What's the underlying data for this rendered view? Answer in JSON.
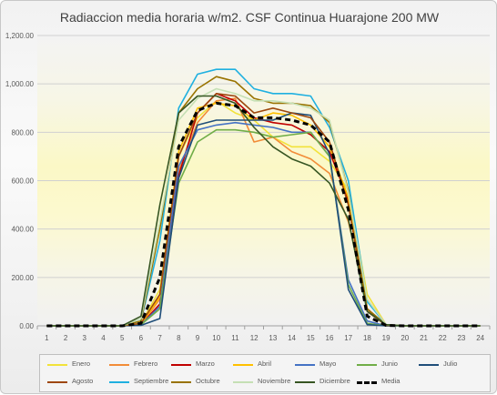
{
  "chart_data": {
    "type": "line",
    "title": "Radiaccion media horaria w/m2. CSF Continua Huarajone 200 MW",
    "xlabel": "",
    "ylabel": "",
    "x": [
      1,
      2,
      3,
      4,
      5,
      6,
      7,
      8,
      9,
      10,
      11,
      12,
      13,
      14,
      15,
      16,
      17,
      18,
      19,
      20,
      21,
      22,
      23,
      24
    ],
    "ylim": [
      0,
      1200
    ],
    "yticks": [
      "0.00",
      "200.00",
      "400.00",
      "600.00",
      "800.00",
      "1,000.00",
      "1,200.00"
    ],
    "background": "vertical gradient: light yellow band across the middle",
    "grid": "horizontal",
    "legend_position": "bottom",
    "series": [
      {
        "name": "Enero",
        "color": "#f2e23a",
        "dash": false,
        "values": [
          0,
          0,
          0,
          0,
          0,
          10,
          150,
          700,
          860,
          930,
          880,
          850,
          780,
          740,
          740,
          680,
          560,
          130,
          5,
          0,
          0,
          0,
          0,
          0
        ]
      },
      {
        "name": "Febrero",
        "color": "#f28c38",
        "dash": false,
        "values": [
          0,
          0,
          0,
          0,
          0,
          5,
          110,
          640,
          840,
          930,
          940,
          760,
          780,
          720,
          690,
          630,
          430,
          110,
          5,
          0,
          0,
          0,
          0,
          0
        ]
      },
      {
        "name": "Marzo",
        "color": "#c00000",
        "dash": false,
        "values": [
          0,
          0,
          0,
          0,
          0,
          5,
          90,
          620,
          880,
          960,
          930,
          860,
          840,
          830,
          790,
          720,
          520,
          70,
          3,
          0,
          0,
          0,
          0,
          0
        ]
      },
      {
        "name": "Abril",
        "color": "#ffc000",
        "dash": false,
        "values": [
          0,
          0,
          0,
          0,
          0,
          5,
          120,
          720,
          900,
          920,
          910,
          850,
          880,
          870,
          830,
          740,
          530,
          60,
          3,
          0,
          0,
          0,
          0,
          0
        ]
      },
      {
        "name": "Mayo",
        "color": "#4472c4",
        "dash": false,
        "values": [
          0,
          0,
          0,
          0,
          0,
          5,
          80,
          660,
          810,
          830,
          840,
          830,
          820,
          800,
          800,
          700,
          190,
          20,
          0,
          0,
          0,
          0,
          0,
          0
        ]
      },
      {
        "name": "Junio",
        "color": "#70ad47",
        "dash": false,
        "values": [
          0,
          0,
          0,
          0,
          0,
          5,
          70,
          590,
          760,
          810,
          810,
          800,
          780,
          790,
          800,
          700,
          170,
          10,
          0,
          0,
          0,
          0,
          0,
          0
        ]
      },
      {
        "name": "Julio",
        "color": "#1f4e79",
        "dash": false,
        "values": [
          0,
          0,
          0,
          0,
          0,
          2,
          30,
          610,
          830,
          850,
          850,
          850,
          850,
          880,
          870,
          710,
          150,
          5,
          0,
          0,
          0,
          0,
          0,
          0
        ]
      },
      {
        "name": "Agosto",
        "color": "#9e480e",
        "dash": false,
        "values": [
          0,
          0,
          0,
          0,
          0,
          10,
          130,
          700,
          880,
          960,
          950,
          880,
          900,
          880,
          860,
          760,
          500,
          60,
          2,
          0,
          0,
          0,
          0,
          0
        ]
      },
      {
        "name": "Septiembre",
        "color": "#1fb0e0",
        "dash": false,
        "values": [
          0,
          0,
          0,
          0,
          0,
          20,
          350,
          900,
          1040,
          1060,
          1060,
          980,
          960,
          960,
          950,
          820,
          600,
          100,
          5,
          0,
          0,
          0,
          0,
          0
        ]
      },
      {
        "name": "Octubre",
        "color": "#997300",
        "dash": false,
        "values": [
          0,
          0,
          0,
          0,
          0,
          20,
          400,
          880,
          980,
          1030,
          1010,
          940,
          920,
          920,
          910,
          840,
          560,
          70,
          5,
          0,
          0,
          0,
          0,
          0
        ]
      },
      {
        "name": "Noviembre",
        "color": "#c5e0b4",
        "dash": false,
        "values": [
          0,
          0,
          0,
          0,
          0,
          30,
          430,
          850,
          940,
          980,
          960,
          930,
          930,
          920,
          900,
          850,
          550,
          110,
          5,
          0,
          0,
          0,
          0,
          0
        ]
      },
      {
        "name": "Diciembre",
        "color": "#375623",
        "dash": false,
        "values": [
          0,
          0,
          0,
          0,
          0,
          40,
          500,
          880,
          950,
          950,
          920,
          820,
          740,
          690,
          660,
          590,
          440,
          60,
          5,
          0,
          0,
          0,
          0,
          0
        ]
      },
      {
        "name": "Media",
        "color": "#000000",
        "dash": true,
        "values": [
          0,
          0,
          0,
          0,
          0,
          10,
          200,
          740,
          890,
          920,
          910,
          860,
          860,
          850,
          830,
          760,
          480,
          40,
          2,
          0,
          0,
          0,
          0,
          0
        ]
      }
    ]
  }
}
